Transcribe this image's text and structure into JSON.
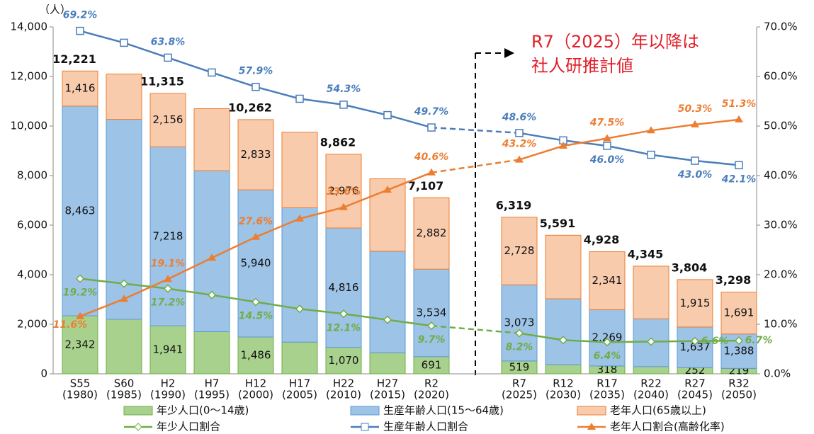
{
  "chart_data": {
    "type": "bar",
    "y_unit": "（人）",
    "annotation": [
      "R7（2025）年以降は",
      "社人研推計値"
    ],
    "categories": [
      [
        "S55",
        "(1980)"
      ],
      [
        "S60",
        "(1985)"
      ],
      [
        "H2",
        "(1990)"
      ],
      [
        "H7",
        "(1995)"
      ],
      [
        "H12",
        "(2000)"
      ],
      [
        "H17",
        "(2005)"
      ],
      [
        "H22",
        "(2010)"
      ],
      [
        "H27",
        "(2015)"
      ],
      [
        "R2",
        "(2020)"
      ],
      [
        "R7",
        "(2025)"
      ],
      [
        "R12",
        "(2030)"
      ],
      [
        "R17",
        "(2035)"
      ],
      [
        "R22",
        "(2040)"
      ],
      [
        "R27",
        "(2045)"
      ],
      [
        "R32",
        "(2050)"
      ]
    ],
    "ylim": [
      0,
      14000
    ],
    "yticks": [
      0,
      {
        "value": 2000,
        "label": "2,000"
      },
      {
        "value": 4000,
        "label": "4,000"
      },
      {
        "value": 6000,
        "label": "6,000"
      },
      {
        "value": 8000,
        "label": "8,000"
      },
      {
        "value": 10000,
        "label": "10,000"
      },
      {
        "value": 12000,
        "label": "12,000"
      },
      {
        "value": 14000,
        "label": "14,000"
      }
    ],
    "y2lim": [
      0,
      70
    ],
    "y2ticks": [
      {
        "value": 0,
        "label": "0.0%"
      },
      {
        "value": 10,
        "label": "10.0%"
      },
      {
        "value": 20,
        "label": "20.0%"
      },
      {
        "value": 30,
        "label": "30.0%"
      },
      {
        "value": 40,
        "label": "40.0%"
      },
      {
        "value": 50,
        "label": "50.0%"
      },
      {
        "value": 60,
        "label": "60.0%"
      },
      {
        "value": 70,
        "label": "70.0%"
      }
    ],
    "series": [
      {
        "name": "年少人口(0～14歳)",
        "color": "#a9d18e",
        "stroke": "#70ad47",
        "values": [
          2342,
          2200,
          1941,
          1700,
          1486,
          1280,
          1070,
          850,
          691,
          519,
          370,
          318,
          290,
          252,
          219
        ],
        "value_labels": [
          "2,342",
          null,
          "1,941",
          null,
          "1,486",
          null,
          "1,070",
          null,
          "691",
          "519",
          null,
          "318",
          null,
          "252",
          "219"
        ]
      },
      {
        "name": "生産年齢人口(15～64歳)",
        "color": "#9dc3e6",
        "stroke": "#5b9bd5",
        "values": [
          8463,
          8070,
          7218,
          6500,
          5940,
          5420,
          4816,
          4100,
          3534,
          3073,
          2660,
          2269,
          1930,
          1637,
          1388
        ],
        "value_labels": [
          "8,463",
          null,
          "7,218",
          null,
          "5,940",
          null,
          "4,816",
          null,
          "3,534",
          "3,073",
          null,
          "2,269",
          null,
          "1,637",
          "1,388"
        ]
      },
      {
        "name": "老年人口(65歳以上)",
        "color": "#f8cbad",
        "stroke": "#ed7d31",
        "values": [
          1416,
          1830,
          2156,
          2500,
          2833,
          3050,
          2976,
          2920,
          2882,
          2728,
          2561,
          2341,
          2125,
          1915,
          1691
        ],
        "value_labels": [
          "1,416",
          null,
          "2,156",
          null,
          "2,833",
          null,
          "2,976",
          null,
          "2,882",
          "2,728",
          null,
          "2,341",
          null,
          "1,915",
          "1,691"
        ]
      },
      {
        "name": "年少人口割合",
        "type": "line",
        "axis": "y2",
        "color": "#70ad47",
        "marker": "diamond",
        "values": [
          19.2,
          18.2,
          17.2,
          15.9,
          14.5,
          13.1,
          12.1,
          10.9,
          9.7,
          8.2,
          6.8,
          6.4,
          6.5,
          6.6,
          6.7
        ],
        "value_labels": [
          "19.2%",
          null,
          "17.2%",
          null,
          "14.5%",
          null,
          "12.1%",
          null,
          "9.7%",
          "8.2%",
          null,
          "6.4%",
          null,
          "6.6%",
          "6.7%"
        ]
      },
      {
        "name": "生産年齢人口割合",
        "type": "line",
        "axis": "y2",
        "color": "#4a7ebb",
        "marker": "square",
        "values": [
          69.2,
          66.8,
          63.8,
          60.8,
          57.9,
          55.5,
          54.3,
          52.2,
          49.7,
          48.6,
          47.1,
          46.0,
          44.2,
          43.0,
          42.1
        ],
        "value_labels": [
          "69.2%",
          null,
          "63.8%",
          null,
          "57.9%",
          null,
          "54.3%",
          null,
          "49.7%",
          "48.6%",
          null,
          "46.0%",
          null,
          "43.0%",
          "42.1%"
        ]
      },
      {
        "name": "老年人口割合(高齢化率)",
        "type": "line",
        "axis": "y2",
        "color": "#ed7d31",
        "marker": "triangle",
        "values": [
          11.6,
          15.1,
          19.1,
          23.4,
          27.6,
          31.3,
          33.6,
          37.1,
          40.6,
          43.2,
          46.0,
          47.5,
          49.1,
          50.3,
          51.3
        ],
        "value_labels": [
          "11.6%",
          null,
          "19.1%",
          null,
          "27.6%",
          null,
          "33.6%",
          null,
          "40.6%",
          "43.2%",
          null,
          "47.5%",
          null,
          "50.3%",
          "51.3%"
        ]
      }
    ],
    "totals": {
      "values": [
        12221,
        null,
        11315,
        null,
        10262,
        null,
        8862,
        null,
        7107,
        6319,
        5591,
        4928,
        4345,
        3804,
        3298
      ],
      "value_labels": [
        "12,221",
        null,
        "11,315",
        null,
        "10,262",
        null,
        "8,862",
        null,
        "7,107",
        "6,319",
        "5,591",
        "4,928",
        "4,345",
        "3,804",
        "3,298"
      ]
    }
  }
}
